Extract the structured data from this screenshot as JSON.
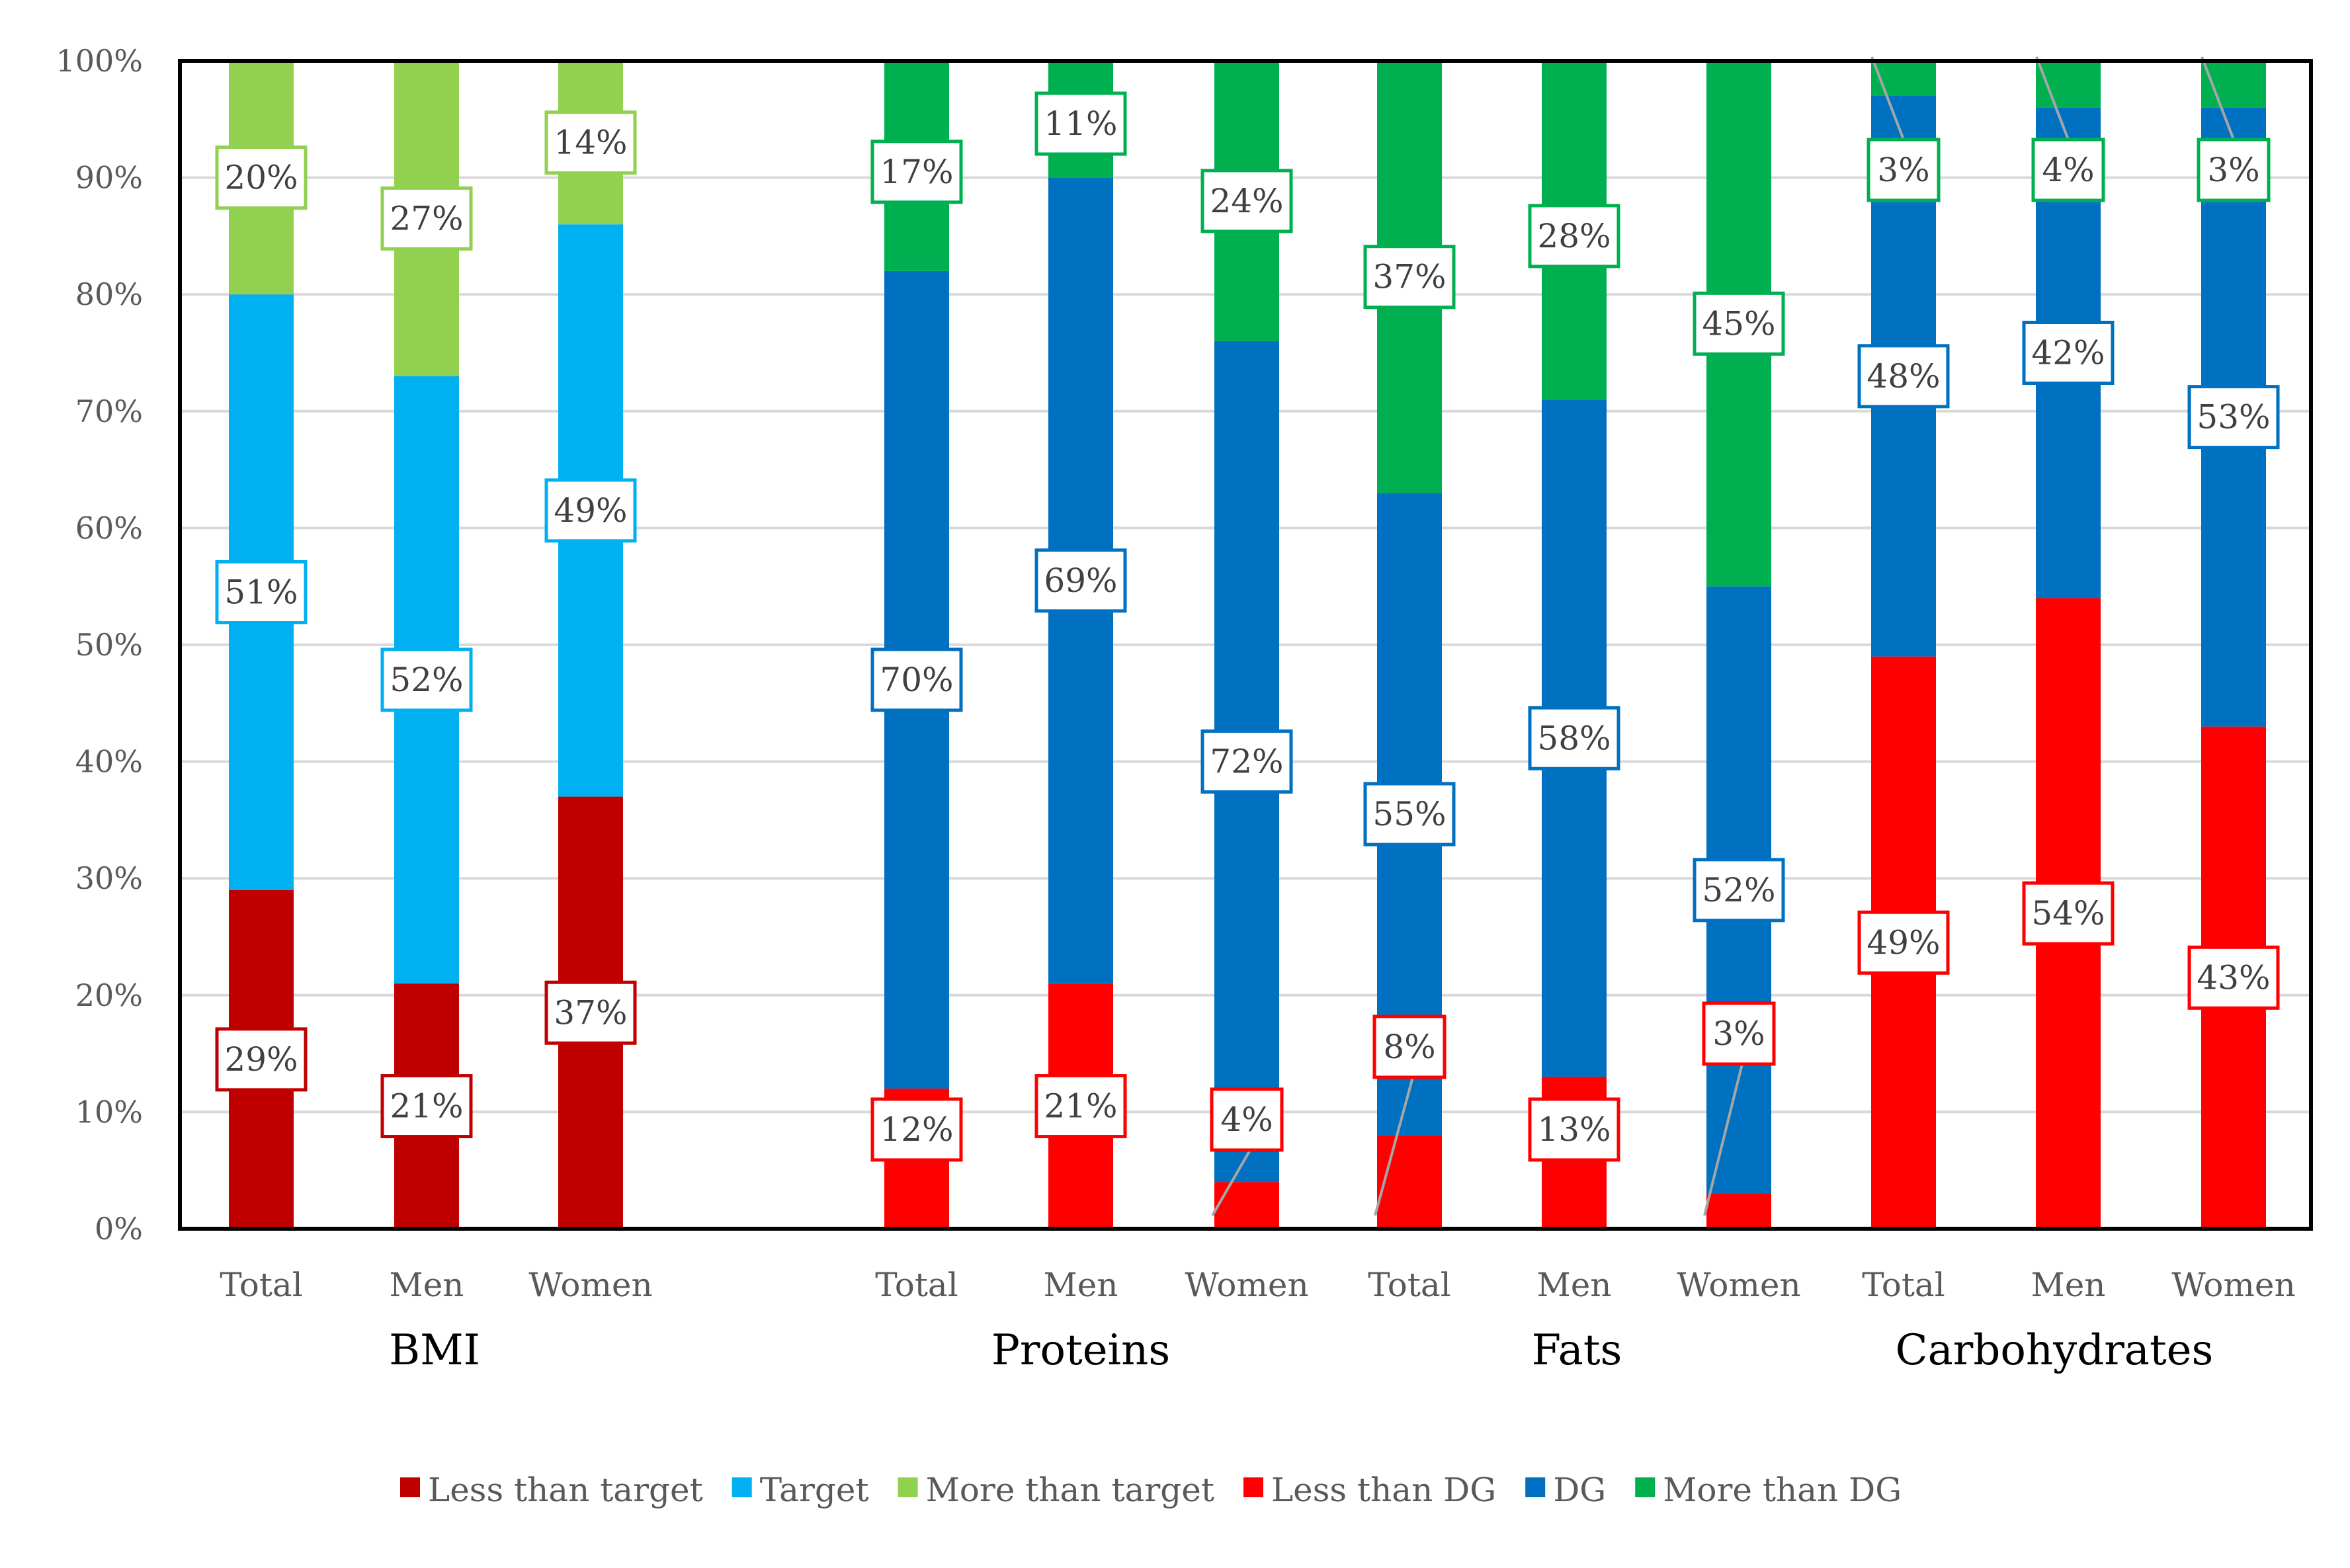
{
  "chart_data": {
    "type": "bar",
    "stacked": true,
    "percent_axis": true,
    "ylim": [
      0,
      100
    ],
    "yticks": [
      "0%",
      "10%",
      "20%",
      "30%",
      "40%",
      "50%",
      "60%",
      "70%",
      "80%",
      "90%",
      "100%"
    ],
    "grid": true,
    "legend_position": "bottom",
    "legend": [
      {
        "name": "Less than target",
        "color": "#c00000"
      },
      {
        "name": "Target",
        "color": "#00b0f0"
      },
      {
        "name": "More than target",
        "color": "#92d050"
      },
      {
        "name": "Less than DG",
        "color": "#ff0000"
      },
      {
        "name": "DG",
        "color": "#0070c0"
      },
      {
        "name": "More than DG",
        "color": "#00b050"
      }
    ],
    "groups": [
      {
        "name": "BMI",
        "series": [
          {
            "name": "Less than target",
            "color": "#c00000"
          },
          {
            "name": "Target",
            "color": "#00b0f0"
          },
          {
            "name": "More than target",
            "color": "#92d050"
          }
        ],
        "bars": [
          {
            "category": "Total",
            "values": [
              29,
              51,
              20
            ],
            "labels": [
              "29%",
              "51%",
              "20%"
            ]
          },
          {
            "category": "Men",
            "values": [
              21,
              52,
              27
            ],
            "labels": [
              "21%",
              "52%",
              "27%"
            ]
          },
          {
            "category": "Women",
            "values": [
              37,
              49,
              14
            ],
            "labels": [
              "37%",
              "49%",
              "14%"
            ]
          }
        ]
      },
      {
        "name": "Proteins",
        "series": [
          {
            "name": "Less than DG",
            "color": "#ff0000"
          },
          {
            "name": "DG",
            "color": "#0070c0"
          },
          {
            "name": "More than DG",
            "color": "#00b050"
          }
        ],
        "bars": [
          {
            "category": "Total",
            "values": [
              12,
              70,
              17
            ],
            "labels": [
              "12%",
              "70%",
              "17%"
            ]
          },
          {
            "category": "Men",
            "values": [
              21,
              69,
              11
            ],
            "labels": [
              "21%",
              "69%",
              "11%"
            ]
          },
          {
            "category": "Women",
            "values": [
              4,
              72,
              24
            ],
            "labels": [
              "4%",
              "72%",
              "24%"
            ]
          }
        ]
      },
      {
        "name": "Fats",
        "series": [
          {
            "name": "Less than DG",
            "color": "#ff0000"
          },
          {
            "name": "DG",
            "color": "#0070c0"
          },
          {
            "name": "More than DG",
            "color": "#00b050"
          }
        ],
        "bars": [
          {
            "category": "Total",
            "values": [
              8,
              55,
              37
            ],
            "labels": [
              "8%",
              "55%",
              "37%"
            ]
          },
          {
            "category": "Men",
            "values": [
              13,
              58,
              28
            ],
            "labels": [
              "13%",
              "58%",
              "28%"
            ]
          },
          {
            "category": "Women",
            "values": [
              3,
              52,
              45
            ],
            "labels": [
              "3%",
              "52%",
              "45%"
            ]
          }
        ]
      },
      {
        "name": "Carbohydrates",
        "series": [
          {
            "name": "Less than DG",
            "color": "#ff0000"
          },
          {
            "name": "DG",
            "color": "#0070c0"
          },
          {
            "name": "More than DG",
            "color": "#00b050"
          }
        ],
        "bars": [
          {
            "category": "Total",
            "values": [
              49,
              48,
              3
            ],
            "labels": [
              "49%",
              "48%",
              "3%"
            ]
          },
          {
            "category": "Men",
            "values": [
              54,
              42,
              4
            ],
            "labels": [
              "54%",
              "42%",
              "4%"
            ]
          },
          {
            "category": "Women",
            "values": [
              43,
              53,
              3
            ],
            "labels": [
              "43%",
              "53%",
              "3%"
            ]
          }
        ]
      }
    ]
  }
}
